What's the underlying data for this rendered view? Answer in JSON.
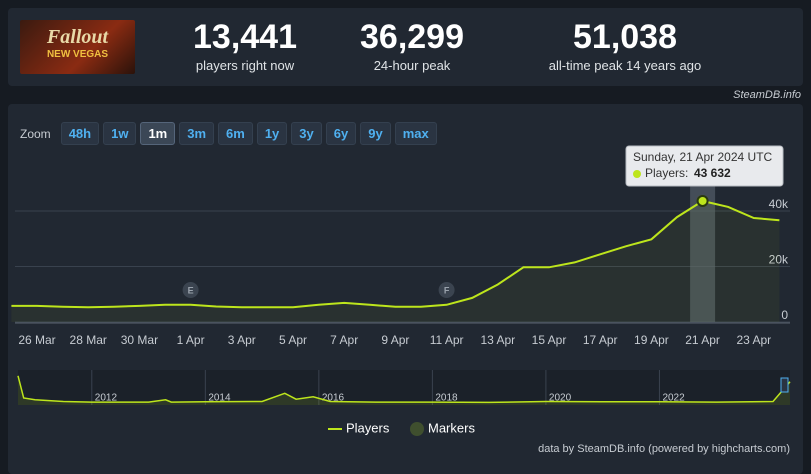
{
  "header": {
    "game_logo": {
      "line1": "Fallout",
      "line2": "NEW VEGAS"
    },
    "stats": [
      {
        "value": "13,441",
        "label": "players right now"
      },
      {
        "value": "36,299",
        "label": "24-hour peak"
      },
      {
        "value": "51,038",
        "label": "all-time peak 14 years ago"
      }
    ],
    "site": "SteamDB.info"
  },
  "zoom": {
    "label": "Zoom",
    "buttons": [
      "48h",
      "1w",
      "1m",
      "3m",
      "6m",
      "1y",
      "3y",
      "6y",
      "9y",
      "max"
    ],
    "active": "1m"
  },
  "chart_data": {
    "type": "line",
    "categories": [
      "25 Mar",
      "26 Mar",
      "27 Mar",
      "28 Mar",
      "29 Mar",
      "30 Mar",
      "31 Mar",
      "1 Apr",
      "2 Apr",
      "3 Apr",
      "4 Apr",
      "5 Apr",
      "6 Apr",
      "7 Apr",
      "8 Apr",
      "9 Apr",
      "10 Apr",
      "11 Apr",
      "12 Apr",
      "13 Apr",
      "14 Apr",
      "15 Apr",
      "16 Apr",
      "17 Apr",
      "18 Apr",
      "19 Apr",
      "20 Apr",
      "21 Apr",
      "22 Apr",
      "23 Apr",
      "24 Apr"
    ],
    "tick_labels": [
      null,
      "26 Mar",
      null,
      "28 Mar",
      null,
      "30 Mar",
      null,
      "1 Apr",
      null,
      "3 Apr",
      null,
      "5 Apr",
      null,
      "7 Apr",
      null,
      "9 Apr",
      null,
      "11 Apr",
      null,
      "13 Apr",
      null,
      "15 Apr",
      null,
      "17 Apr",
      null,
      "19 Apr",
      null,
      "21 Apr",
      null,
      "23 Apr",
      null
    ],
    "series": [
      {
        "name": "Players",
        "color": "#bde51c",
        "values": [
          5800,
          5800,
          5500,
          5300,
          5500,
          5800,
          6200,
          6200,
          5600,
          5300,
          5300,
          5300,
          6200,
          6900,
          6200,
          5500,
          5500,
          6200,
          8700,
          13500,
          19700,
          19700,
          21500,
          24400,
          27300,
          29800,
          37800,
          43632,
          41500,
          37500,
          36700
        ]
      }
    ],
    "ylim": [
      0,
      62000
    ],
    "yticks": [
      0,
      {
        "value": 20000,
        "label": "20k"
      },
      {
        "value": 40000,
        "label": "40k"
      }
    ],
    "grid": true,
    "markers": [
      {
        "x": "1 Apr",
        "label": "E"
      },
      {
        "x": "11 Apr",
        "label": "F"
      }
    ],
    "tooltip": {
      "title": "Sunday, 21 Apr 2024 UTC",
      "label": "Players:",
      "x": "21 Apr",
      "value": 43632,
      "value_label": "43 632"
    },
    "marker_legend": "Markers",
    "navigator": {
      "x": [
        2010.7,
        2010.8,
        2011,
        2011.5,
        2012,
        2013,
        2013.3,
        2013.4,
        2014,
        2015,
        2015.4,
        2015.6,
        2015.9,
        2016.2,
        2017,
        2018,
        2019,
        2020,
        2021,
        2022,
        2023,
        2024,
        2024.3
      ],
      "values": [
        50000,
        12000,
        9000,
        6000,
        5000,
        5000,
        9000,
        5000,
        5500,
        6000,
        20000,
        10000,
        14000,
        6000,
        5000,
        5000,
        4500,
        6000,
        5500,
        5500,
        5000,
        6000,
        40000
      ],
      "xlim": [
        2010.7,
        2024.3
      ],
      "xticks": [
        2012,
        2014,
        2016,
        2018,
        2020,
        2022
      ],
      "ylim": [
        0,
        60000
      ]
    },
    "credits": "data by SteamDB.info (powered by highcharts.com)"
  }
}
